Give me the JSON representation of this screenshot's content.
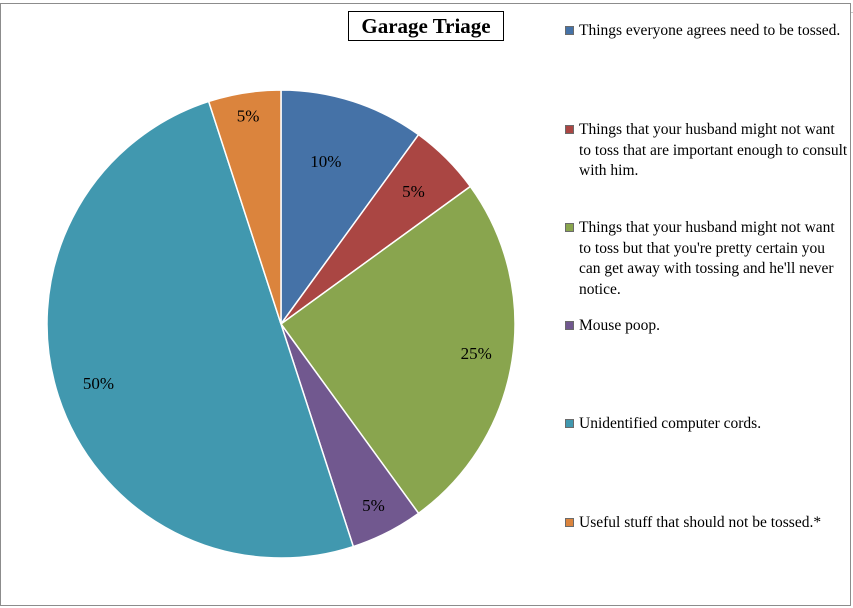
{
  "chart_data": {
    "type": "pie",
    "title": "Garage Triage",
    "slices": [
      {
        "label": "Things everyone agrees need to be tossed.",
        "value": 10,
        "data_label": "10%",
        "color": "#4572a7"
      },
      {
        "label": "Things that your husband might not want to toss that are important enough to consult with him.",
        "value": 5,
        "data_label": "5%",
        "color": "#aa4643"
      },
      {
        "label": "Things that your husband might not want to toss but that you're pretty certain you can get away with tossing and he'll never notice.",
        "value": 25,
        "data_label": "25%",
        "color": "#89a54e"
      },
      {
        "label": "Mouse poop.",
        "value": 5,
        "data_label": "5%",
        "color": "#71588f"
      },
      {
        "label": "Unidentified computer cords.",
        "value": 50,
        "data_label": "50%",
        "color": "#4198af"
      },
      {
        "label": "Useful stuff that should not be tossed.*",
        "value": 5,
        "data_label": "5%",
        "color": "#db843d"
      }
    ],
    "legend_position": "right"
  }
}
